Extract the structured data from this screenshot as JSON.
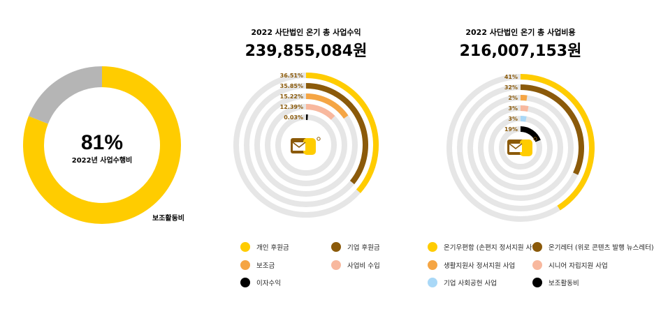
{
  "colors": {
    "gold": "#FFCC00",
    "brown": "#8B5A0A",
    "orange": "#F5A544",
    "peach": "#F8B89E",
    "black": "#000000",
    "lightblue": "#A9D8F7",
    "gray": "#B5B5B5",
    "track": "#E6E6E6",
    "label_brown": "#8B5A0A"
  },
  "chart_data": [
    {
      "type": "pie",
      "variant": "donut",
      "center_value": "81%",
      "center_label": "2022년 사업수행비",
      "slices": [
        {
          "name": "2022년 사업수행비",
          "value": 81,
          "color": "#FFCC00"
        },
        {
          "name": "보조활동비",
          "value": 19,
          "color": "#B5B5B5"
        }
      ],
      "outside_label": "보조활동비"
    },
    {
      "type": "radial-bar",
      "title": "2022 사단법인 온기 총 사업수익",
      "total": "239,855,084원",
      "series": [
        {
          "name": "개인 후원금",
          "value": 36.51,
          "label": "36.51%",
          "color": "#FFCC00"
        },
        {
          "name": "기업 후원금",
          "value": 35.85,
          "label": "35.85%",
          "color": "#8B5A0A"
        },
        {
          "name": "보조금",
          "value": 15.22,
          "label": "15.22%",
          "color": "#F5A544"
        },
        {
          "name": "사업비 수입",
          "value": 12.39,
          "label": "12.39%",
          "color": "#F8B89E"
        },
        {
          "name": "이자수익",
          "value": 0.03,
          "label": "0.03%",
          "color": "#000000"
        }
      ]
    },
    {
      "type": "radial-bar",
      "title": "2022 사단법인 온기 총 사업비용",
      "total": "216,007,153원",
      "series": [
        {
          "name": "온기우편함 (손편지 정서지원 사업)",
          "value": 41,
          "label": "41%",
          "color": "#FFCC00"
        },
        {
          "name": "온기레터 (위로 콘텐츠 발행 뉴스레터)",
          "value": 32,
          "label": "32%",
          "color": "#8B5A0A"
        },
        {
          "name": "생활지원사 정서지원 사업",
          "value": 2,
          "label": "2%",
          "color": "#F5A544"
        },
        {
          "name": "시니어 자립지원 사업",
          "value": 3,
          "label": "3%",
          "color": "#F8B89E"
        },
        {
          "name": "기업 사회공헌 사업",
          "value": 3,
          "label": "3%",
          "color": "#A9D8F7"
        },
        {
          "name": "보조활동비",
          "value": 19,
          "label": "19%",
          "color": "#000000"
        }
      ]
    }
  ],
  "legend_revenue": [
    {
      "name": "개인 후원금",
      "color": "#FFCC00"
    },
    {
      "name": "기업 후원금",
      "color": "#8B5A0A"
    },
    {
      "name": "보조금",
      "color": "#F5A544"
    },
    {
      "name": "사업비 수입",
      "color": "#F8B89E"
    },
    {
      "name": "이자수익",
      "color": "#000000"
    }
  ],
  "legend_expense": [
    {
      "name": "온기우편함 (손편지 정서지원 사업)",
      "color": "#FFCC00"
    },
    {
      "name": "온기레터 (위로 콘텐츠 발행 뉴스레터)",
      "color": "#8B5A0A"
    },
    {
      "name": "생활지원사 정서지원 사업",
      "color": "#F5A544"
    },
    {
      "name": "시니어 자립지원 사업",
      "color": "#F8B89E"
    },
    {
      "name": "기업 사회공헌 사업",
      "color": "#A9D8F7"
    },
    {
      "name": "보조활동비",
      "color": "#000000"
    }
  ],
  "icons": {
    "center_icon": "envelope-icon"
  }
}
